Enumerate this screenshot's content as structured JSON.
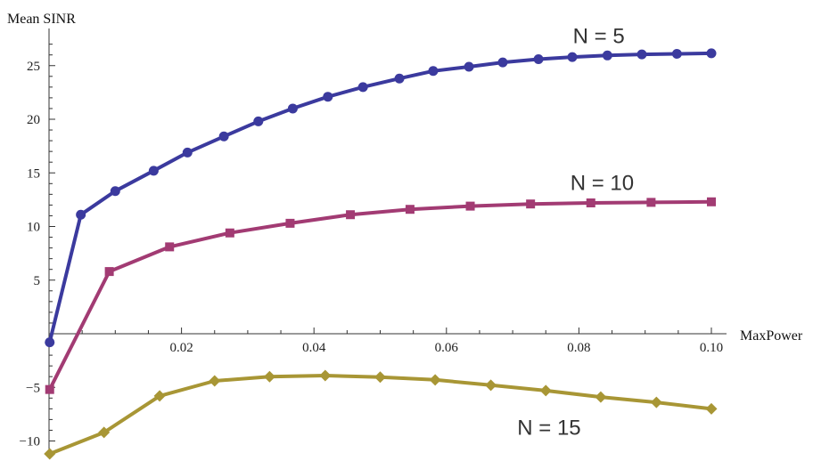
{
  "chart_data": {
    "type": "line",
    "title": "",
    "xlabel": "MaxPower",
    "ylabel": "Mean SINR",
    "xlim": [
      0,
      0.1
    ],
    "ylim": [
      -11,
      28
    ],
    "x_ticks": [
      0.02,
      0.04,
      0.06,
      0.08,
      0.1
    ],
    "x_tick_labels": [
      "0.02",
      "0.04",
      "0.06",
      "0.08",
      "0.10"
    ],
    "y_ticks": [
      -10,
      -5,
      5,
      10,
      15,
      20,
      25
    ],
    "y_tick_labels": [
      "−10",
      "−5",
      "5",
      "10",
      "15",
      "20",
      "25"
    ],
    "grid": false,
    "legend": "none",
    "series": [
      {
        "name": "N = 5",
        "color": "#3b3a9e",
        "marker": "circle",
        "x": [
          0.0001,
          0.0048,
          0.01,
          0.0158,
          0.0209,
          0.0264,
          0.0316,
          0.0368,
          0.0421,
          0.0474,
          0.0529,
          0.058,
          0.0634,
          0.0685,
          0.0739,
          0.079,
          0.0843,
          0.0895,
          0.0948,
          0.1
        ],
        "y": [
          -0.8,
          11.1,
          13.3,
          15.2,
          16.9,
          18.4,
          19.8,
          21.0,
          22.1,
          23.0,
          23.8,
          24.5,
          24.9,
          25.3,
          25.6,
          25.8,
          25.95,
          26.05,
          26.1,
          26.15
        ]
      },
      {
        "name": "N = 10",
        "color": "#a23b73",
        "marker": "square",
        "x": [
          0.0001,
          0.0091,
          0.0182,
          0.0273,
          0.0364,
          0.0455,
          0.0545,
          0.0636,
          0.0727,
          0.0818,
          0.0909,
          0.1
        ],
        "y": [
          -5.2,
          5.8,
          8.1,
          9.4,
          10.3,
          11.1,
          11.6,
          11.9,
          12.1,
          12.2,
          12.25,
          12.3
        ]
      },
      {
        "name": "N = 15",
        "color": "#a89635",
        "marker": "diamond",
        "x": [
          0.0001,
          0.0083,
          0.0167,
          0.025,
          0.0333,
          0.0417,
          0.05,
          0.0583,
          0.0667,
          0.075,
          0.0833,
          0.0917,
          0.1
        ],
        "y": [
          -11.2,
          -9.2,
          -5.8,
          -4.4,
          -4.0,
          -3.9,
          -4.05,
          -4.3,
          -4.8,
          -5.3,
          -5.9,
          -6.4,
          -7.0
        ]
      }
    ],
    "annotations": [
      {
        "text": "N = 5",
        "x": 0.083,
        "y": 27.1
      },
      {
        "text": "N = 10",
        "x": 0.0835,
        "y": 13.4
      },
      {
        "text": "N = 15",
        "x": 0.0755,
        "y": -9.4
      }
    ]
  }
}
